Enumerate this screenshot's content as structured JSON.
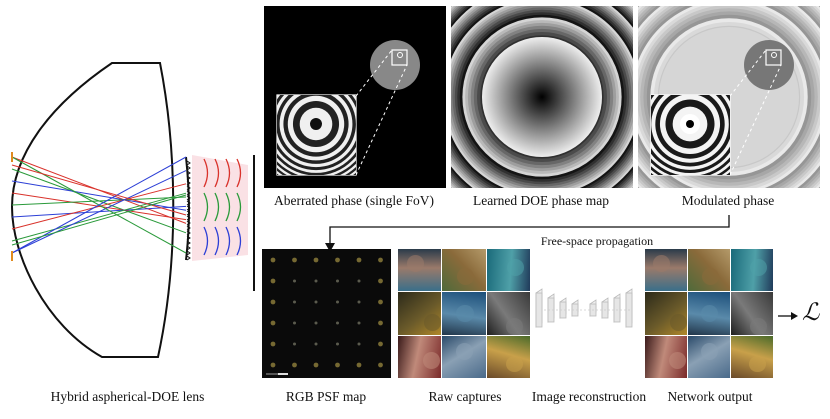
{
  "captions": {
    "lens": "Hybrid aspherical-DOE lens",
    "aberrated": "Aberrated phase (single FoV)",
    "learned": "Learned DOE phase map",
    "modulated": "Modulated phase",
    "propagation": "Free-space propagation",
    "psf": "RGB PSF map",
    "raw": "Raw captures",
    "recon": "Image reconstruction",
    "output": "Network output",
    "loss": "ℒ"
  },
  "colors": {
    "ray_red": "#d9322b",
    "ray_green": "#2a9a3a",
    "ray_blue": "#2c3fd6",
    "ray_orange": "#e08a1e",
    "psf_background": "#0a0a0a",
    "phase_background": "#000000"
  },
  "psf_map": {
    "rows": 6,
    "cols": 6
  },
  "photo_tiles": [
    {
      "name": "tile-hands",
      "colors": [
        "#3a6f8a",
        "#9a7a6a",
        "#2a3b4a"
      ]
    },
    {
      "name": "tile-deer",
      "colors": [
        "#4f6a3a",
        "#8a6a3a",
        "#b49a6a"
      ]
    },
    {
      "name": "tile-coast-aerial",
      "colors": [
        "#1a6a7a",
        "#4fa0a8",
        "#203a5a"
      ]
    },
    {
      "name": "tile-forest",
      "colors": [
        "#2c2a1a",
        "#6a5a2a",
        "#b0882a"
      ]
    },
    {
      "name": "tile-boat-lake",
      "colors": [
        "#1c4f7a",
        "#5a8aaa",
        "#22364a"
      ]
    },
    {
      "name": "tile-bike",
      "colors": [
        "#3a3a3a",
        "#7a7a7a",
        "#1e1e1e"
      ]
    },
    {
      "name": "tile-person",
      "colors": [
        "#7a2a2a",
        "#c08a7a",
        "#3a1a1a"
      ]
    },
    {
      "name": "tile-mountain-aerial",
      "colors": [
        "#4a6a8a",
        "#8aa0b4",
        "#2a4a6a"
      ]
    },
    {
      "name": "tile-fruit",
      "colors": [
        "#6a4a2a",
        "#c8a04a",
        "#4a6a2a"
      ]
    }
  ],
  "icons": {
    "arrow": "right-arrow",
    "network": "unet-network-icon"
  }
}
